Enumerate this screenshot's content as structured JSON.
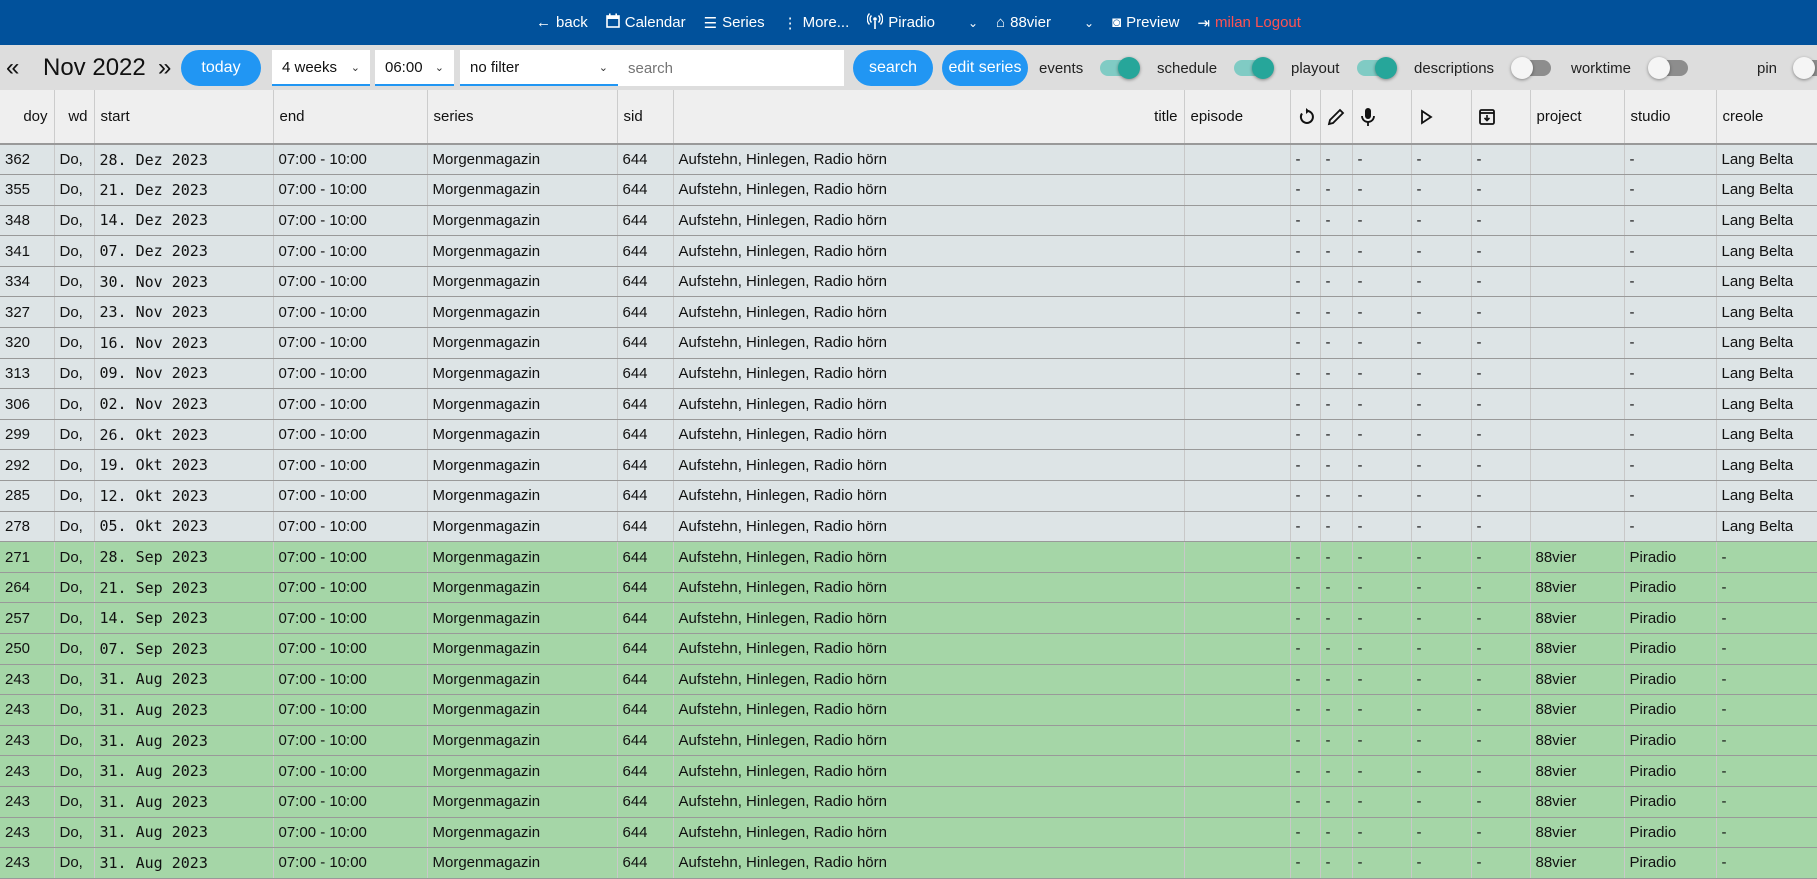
{
  "topbar": {
    "items": [
      {
        "icon": "arrow-left-icon",
        "label": "back"
      },
      {
        "icon": "calendar-icon",
        "label": "Calendar"
      },
      {
        "icon": "list-icon",
        "label": "Series"
      },
      {
        "icon": "more-vertical-icon",
        "label": "More..."
      },
      {
        "icon": "radio-tower-icon",
        "label": "Piradio"
      },
      {
        "icon": "home-icon",
        "label": "88vier"
      },
      {
        "icon": "preview-icon",
        "label": "Preview"
      }
    ],
    "logout": {
      "icon": "logout-icon",
      "label": "milan Logout"
    }
  },
  "toolbar": {
    "prev": "«",
    "month": "Nov 2022",
    "next": "»",
    "today": "today",
    "range": "4 weeks",
    "time": "06:00",
    "filter": "no filter",
    "search_placeholder": "search",
    "search_button": "search",
    "edit_series": "edit series",
    "toggles": [
      {
        "label": "events",
        "on": true
      },
      {
        "label": "schedule",
        "on": true
      },
      {
        "label": "playout",
        "on": true
      },
      {
        "label": "descriptions",
        "on": false
      },
      {
        "label": "worktime",
        "on": false
      },
      {
        "label": "pin",
        "on": false
      }
    ]
  },
  "colors": {
    "topbar": "#01519b",
    "accent": "#2196f3",
    "toggle_on": "#26a69a",
    "row_past": "#dde4e6",
    "row_current": "#a5d6a7",
    "logout": "#ff5252"
  },
  "table": {
    "headers": [
      "doy",
      "wd",
      "start",
      "end",
      "series",
      "sid",
      "title",
      "episode",
      "",
      "",
      "",
      "",
      "",
      "project",
      "studio",
      "creole"
    ],
    "header_icons": [
      "reload-icon",
      "edit-icon",
      "microphone-icon",
      "play-icon",
      "archive-icon"
    ],
    "rows": [
      {
        "doy": "362",
        "wd": "Do,",
        "start": "28. Dez 2023",
        "end": "07:00 - 10:00",
        "series": "Morgenmagazin",
        "sid": "644",
        "title": "Aufstehn, Hinlegen, Radio hörn",
        "episode": "",
        "c": [
          "-",
          "-",
          "-",
          "-",
          "-"
        ],
        "project": "",
        "studio": "-",
        "creole": "Lang Belta",
        "status": "grey"
      },
      {
        "doy": "355",
        "wd": "Do,",
        "start": "21. Dez 2023",
        "end": "07:00 - 10:00",
        "series": "Morgenmagazin",
        "sid": "644",
        "title": "Aufstehn, Hinlegen, Radio hörn",
        "episode": "",
        "c": [
          "-",
          "-",
          "-",
          "-",
          "-"
        ],
        "project": "",
        "studio": "-",
        "creole": "Lang Belta",
        "status": "grey"
      },
      {
        "doy": "348",
        "wd": "Do,",
        "start": "14. Dez 2023",
        "end": "07:00 - 10:00",
        "series": "Morgenmagazin",
        "sid": "644",
        "title": "Aufstehn, Hinlegen, Radio hörn",
        "episode": "",
        "c": [
          "-",
          "-",
          "-",
          "-",
          "-"
        ],
        "project": "",
        "studio": "-",
        "creole": "Lang Belta",
        "status": "grey"
      },
      {
        "doy": "341",
        "wd": "Do,",
        "start": "07. Dez 2023",
        "end": "07:00 - 10:00",
        "series": "Morgenmagazin",
        "sid": "644",
        "title": "Aufstehn, Hinlegen, Radio hörn",
        "episode": "",
        "c": [
          "-",
          "-",
          "-",
          "-",
          "-"
        ],
        "project": "",
        "studio": "-",
        "creole": "Lang Belta",
        "status": "grey"
      },
      {
        "doy": "334",
        "wd": "Do,",
        "start": "30. Nov 2023",
        "end": "07:00 - 10:00",
        "series": "Morgenmagazin",
        "sid": "644",
        "title": "Aufstehn, Hinlegen, Radio hörn",
        "episode": "",
        "c": [
          "-",
          "-",
          "-",
          "-",
          "-"
        ],
        "project": "",
        "studio": "-",
        "creole": "Lang Belta",
        "status": "grey"
      },
      {
        "doy": "327",
        "wd": "Do,",
        "start": "23. Nov 2023",
        "end": "07:00 - 10:00",
        "series": "Morgenmagazin",
        "sid": "644",
        "title": "Aufstehn, Hinlegen, Radio hörn",
        "episode": "",
        "c": [
          "-",
          "-",
          "-",
          "-",
          "-"
        ],
        "project": "",
        "studio": "-",
        "creole": "Lang Belta",
        "status": "grey"
      },
      {
        "doy": "320",
        "wd": "Do,",
        "start": "16. Nov 2023",
        "end": "07:00 - 10:00",
        "series": "Morgenmagazin",
        "sid": "644",
        "title": "Aufstehn, Hinlegen, Radio hörn",
        "episode": "",
        "c": [
          "-",
          "-",
          "-",
          "-",
          "-"
        ],
        "project": "",
        "studio": "-",
        "creole": "Lang Belta",
        "status": "grey"
      },
      {
        "doy": "313",
        "wd": "Do,",
        "start": "09. Nov 2023",
        "end": "07:00 - 10:00",
        "series": "Morgenmagazin",
        "sid": "644",
        "title": "Aufstehn, Hinlegen, Radio hörn",
        "episode": "",
        "c": [
          "-",
          "-",
          "-",
          "-",
          "-"
        ],
        "project": "",
        "studio": "-",
        "creole": "Lang Belta",
        "status": "grey"
      },
      {
        "doy": "306",
        "wd": "Do,",
        "start": "02. Nov 2023",
        "end": "07:00 - 10:00",
        "series": "Morgenmagazin",
        "sid": "644",
        "title": "Aufstehn, Hinlegen, Radio hörn",
        "episode": "",
        "c": [
          "-",
          "-",
          "-",
          "-",
          "-"
        ],
        "project": "",
        "studio": "-",
        "creole": "Lang Belta",
        "status": "grey"
      },
      {
        "doy": "299",
        "wd": "Do,",
        "start": "26. Okt 2023",
        "end": "07:00 - 10:00",
        "series": "Morgenmagazin",
        "sid": "644",
        "title": "Aufstehn, Hinlegen, Radio hörn",
        "episode": "",
        "c": [
          "-",
          "-",
          "-",
          "-",
          "-"
        ],
        "project": "",
        "studio": "-",
        "creole": "Lang Belta",
        "status": "grey"
      },
      {
        "doy": "292",
        "wd": "Do,",
        "start": "19. Okt 2023",
        "end": "07:00 - 10:00",
        "series": "Morgenmagazin",
        "sid": "644",
        "title": "Aufstehn, Hinlegen, Radio hörn",
        "episode": "",
        "c": [
          "-",
          "-",
          "-",
          "-",
          "-"
        ],
        "project": "",
        "studio": "-",
        "creole": "Lang Belta",
        "status": "grey"
      },
      {
        "doy": "285",
        "wd": "Do,",
        "start": "12. Okt 2023",
        "end": "07:00 - 10:00",
        "series": "Morgenmagazin",
        "sid": "644",
        "title": "Aufstehn, Hinlegen, Radio hörn",
        "episode": "",
        "c": [
          "-",
          "-",
          "-",
          "-",
          "-"
        ],
        "project": "",
        "studio": "-",
        "creole": "Lang Belta",
        "status": "grey"
      },
      {
        "doy": "278",
        "wd": "Do,",
        "start": "05. Okt 2023",
        "end": "07:00 - 10:00",
        "series": "Morgenmagazin",
        "sid": "644",
        "title": "Aufstehn, Hinlegen, Radio hörn",
        "episode": "",
        "c": [
          "-",
          "-",
          "-",
          "-",
          "-"
        ],
        "project": "",
        "studio": "-",
        "creole": "Lang Belta",
        "status": "grey"
      },
      {
        "doy": "271",
        "wd": "Do,",
        "start": "28. Sep 2023",
        "end": "07:00 - 10:00",
        "series": "Morgenmagazin",
        "sid": "644",
        "title": "Aufstehn, Hinlegen, Radio hörn",
        "episode": "",
        "c": [
          "-",
          "-",
          "-",
          "-",
          "-"
        ],
        "project": "88vier",
        "studio": "Piradio",
        "creole": "-",
        "status": "green"
      },
      {
        "doy": "264",
        "wd": "Do,",
        "start": "21. Sep 2023",
        "end": "07:00 - 10:00",
        "series": "Morgenmagazin",
        "sid": "644",
        "title": "Aufstehn, Hinlegen, Radio hörn",
        "episode": "",
        "c": [
          "-",
          "-",
          "-",
          "-",
          "-"
        ],
        "project": "88vier",
        "studio": "Piradio",
        "creole": "-",
        "status": "green"
      },
      {
        "doy": "257",
        "wd": "Do,",
        "start": "14. Sep 2023",
        "end": "07:00 - 10:00",
        "series": "Morgenmagazin",
        "sid": "644",
        "title": "Aufstehn, Hinlegen, Radio hörn",
        "episode": "",
        "c": [
          "-",
          "-",
          "-",
          "-",
          "-"
        ],
        "project": "88vier",
        "studio": "Piradio",
        "creole": "-",
        "status": "green"
      },
      {
        "doy": "250",
        "wd": "Do,",
        "start": "07. Sep 2023",
        "end": "07:00 - 10:00",
        "series": "Morgenmagazin",
        "sid": "644",
        "title": "Aufstehn, Hinlegen, Radio hörn",
        "episode": "",
        "c": [
          "-",
          "-",
          "-",
          "-",
          "-"
        ],
        "project": "88vier",
        "studio": "Piradio",
        "creole": "-",
        "status": "green"
      },
      {
        "doy": "243",
        "wd": "Do,",
        "start": "31. Aug 2023",
        "end": "07:00 - 10:00",
        "series": "Morgenmagazin",
        "sid": "644",
        "title": "Aufstehn, Hinlegen, Radio hörn",
        "episode": "",
        "c": [
          "-",
          "-",
          "-",
          "-",
          "-"
        ],
        "project": "88vier",
        "studio": "Piradio",
        "creole": "-",
        "status": "green"
      },
      {
        "doy": "243",
        "wd": "Do,",
        "start": "31. Aug 2023",
        "end": "07:00 - 10:00",
        "series": "Morgenmagazin",
        "sid": "644",
        "title": "Aufstehn, Hinlegen, Radio hörn",
        "episode": "",
        "c": [
          "-",
          "-",
          "-",
          "-",
          "-"
        ],
        "project": "88vier",
        "studio": "Piradio",
        "creole": "-",
        "status": "green"
      },
      {
        "doy": "243",
        "wd": "Do,",
        "start": "31. Aug 2023",
        "end": "07:00 - 10:00",
        "series": "Morgenmagazin",
        "sid": "644",
        "title": "Aufstehn, Hinlegen, Radio hörn",
        "episode": "",
        "c": [
          "-",
          "-",
          "-",
          "-",
          "-"
        ],
        "project": "88vier",
        "studio": "Piradio",
        "creole": "-",
        "status": "green"
      },
      {
        "doy": "243",
        "wd": "Do,",
        "start": "31. Aug 2023",
        "end": "07:00 - 10:00",
        "series": "Morgenmagazin",
        "sid": "644",
        "title": "Aufstehn, Hinlegen, Radio hörn",
        "episode": "",
        "c": [
          "-",
          "-",
          "-",
          "-",
          "-"
        ],
        "project": "88vier",
        "studio": "Piradio",
        "creole": "-",
        "status": "green"
      },
      {
        "doy": "243",
        "wd": "Do,",
        "start": "31. Aug 2023",
        "end": "07:00 - 10:00",
        "series": "Morgenmagazin",
        "sid": "644",
        "title": "Aufstehn, Hinlegen, Radio hörn",
        "episode": "",
        "c": [
          "-",
          "-",
          "-",
          "-",
          "-"
        ],
        "project": "88vier",
        "studio": "Piradio",
        "creole": "-",
        "status": "green"
      },
      {
        "doy": "243",
        "wd": "Do,",
        "start": "31. Aug 2023",
        "end": "07:00 - 10:00",
        "series": "Morgenmagazin",
        "sid": "644",
        "title": "Aufstehn, Hinlegen, Radio hörn",
        "episode": "",
        "c": [
          "-",
          "-",
          "-",
          "-",
          "-"
        ],
        "project": "88vier",
        "studio": "Piradio",
        "creole": "-",
        "status": "green"
      },
      {
        "doy": "243",
        "wd": "Do,",
        "start": "31. Aug 2023",
        "end": "07:00 - 10:00",
        "series": "Morgenmagazin",
        "sid": "644",
        "title": "Aufstehn, Hinlegen, Radio hörn",
        "episode": "",
        "c": [
          "-",
          "-",
          "-",
          "-",
          "-"
        ],
        "project": "88vier",
        "studio": "Piradio",
        "creole": "-",
        "status": "green"
      }
    ]
  }
}
